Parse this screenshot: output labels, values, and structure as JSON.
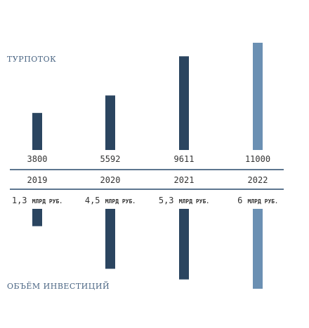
{
  "chart_data": [
    {
      "type": "bar",
      "name": "ТУРПОТОК",
      "categories": [
        "2019",
        "2020",
        "2021",
        "2022"
      ],
      "values": [
        3800,
        5592,
        9611,
        11000
      ],
      "value_labels": [
        "3800",
        "5592",
        "9611",
        "11000"
      ],
      "colors": [
        "#2b4560",
        "#2b4560",
        "#2b4560",
        "#6b90b3"
      ]
    },
    {
      "type": "bar",
      "name": "ОБЪЁМ ИНВЕСТИЦИЙ",
      "categories": [
        "2019",
        "2020",
        "2021",
        "2022"
      ],
      "values": [
        1.3,
        4.5,
        5.3,
        6
      ],
      "value_numbers": [
        "1,3",
        "4,5",
        "5,3",
        "6"
      ],
      "unit": "МЛРД РУБ.",
      "colors": [
        "#2b4560",
        "#2b4560",
        "#2b4560",
        "#6b90b3"
      ]
    }
  ],
  "labels": {
    "top": "ТУРПОТОК",
    "bottom": "ОБЪЁМ ИНВЕСТИЦИЙ"
  },
  "colors": {
    "dark": "#2b4560",
    "light": "#6b90b3",
    "axis": "#5d7690",
    "text": "#333333"
  }
}
